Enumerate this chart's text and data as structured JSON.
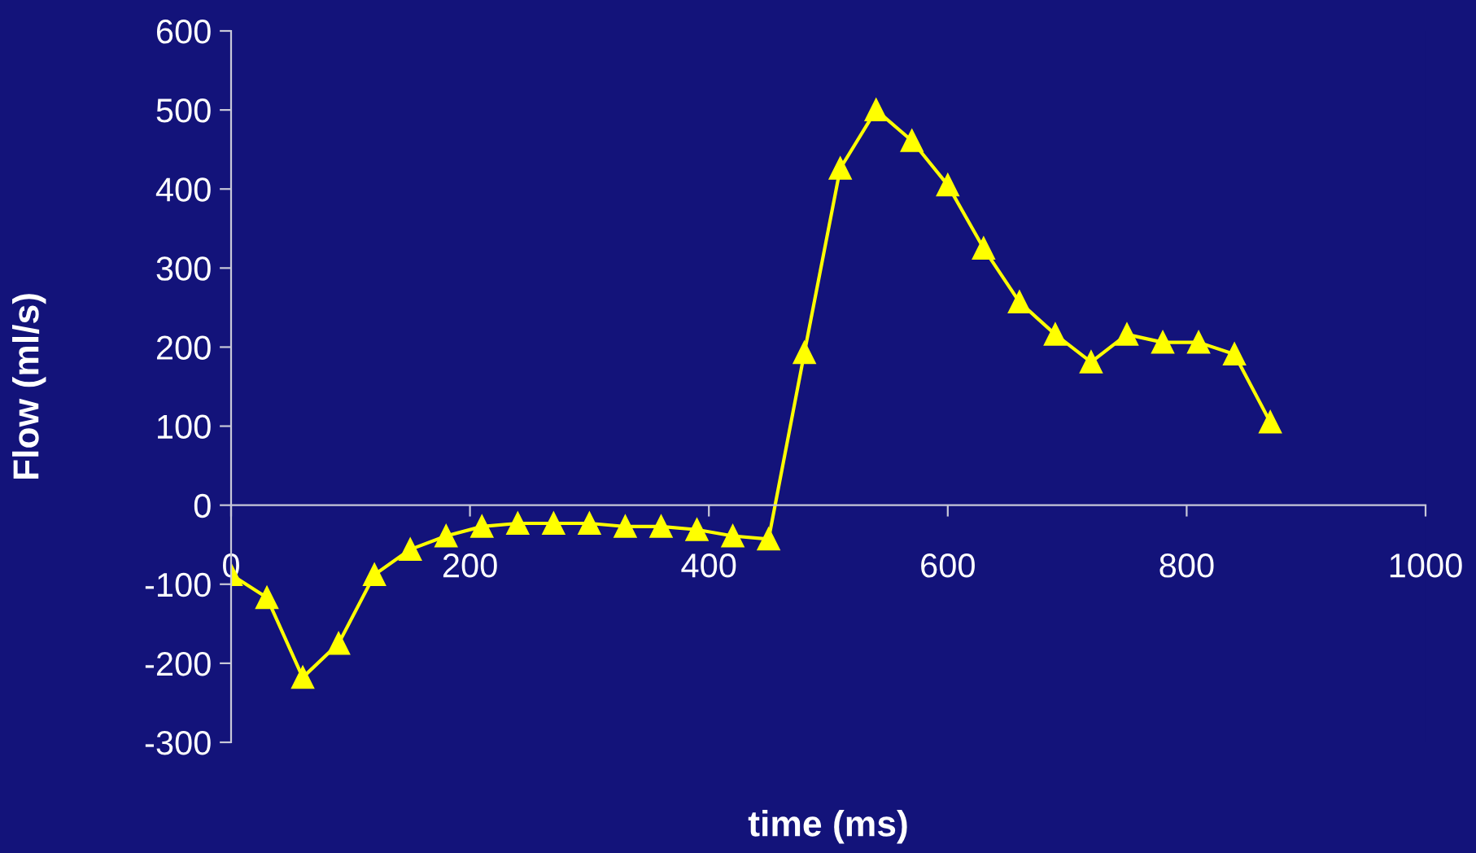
{
  "chart_data": {
    "type": "line",
    "xlabel": "time (ms)",
    "ylabel": "Flow (ml/s)",
    "x": [
      0,
      30,
      60,
      90,
      120,
      150,
      180,
      210,
      240,
      270,
      300,
      330,
      360,
      390,
      420,
      450,
      480,
      510,
      540,
      570,
      600,
      630,
      660,
      690,
      720,
      750,
      780,
      810,
      840,
      870
    ],
    "series": [
      {
        "color": "#ffff00",
        "values": [
          -88,
          -117,
          -218,
          -175,
          -88,
          -56,
          -39,
          -27,
          -23,
          -23,
          -23,
          -27,
          -27,
          -31,
          -39,
          -43,
          193,
          426,
          500,
          461,
          405,
          325,
          257,
          216,
          181,
          216,
          206,
          206,
          191,
          105
        ]
      }
    ],
    "xlim": [
      0,
      1000
    ],
    "xticks": [
      0,
      200,
      400,
      600,
      800,
      1000
    ],
    "ylim": [
      -300,
      600
    ],
    "yticks": [
      -300,
      -200,
      -100,
      0,
      100,
      200,
      300,
      400,
      500,
      600
    ],
    "marker": "triangle",
    "line_style": "solid",
    "grid": false,
    "legend": false
  }
}
